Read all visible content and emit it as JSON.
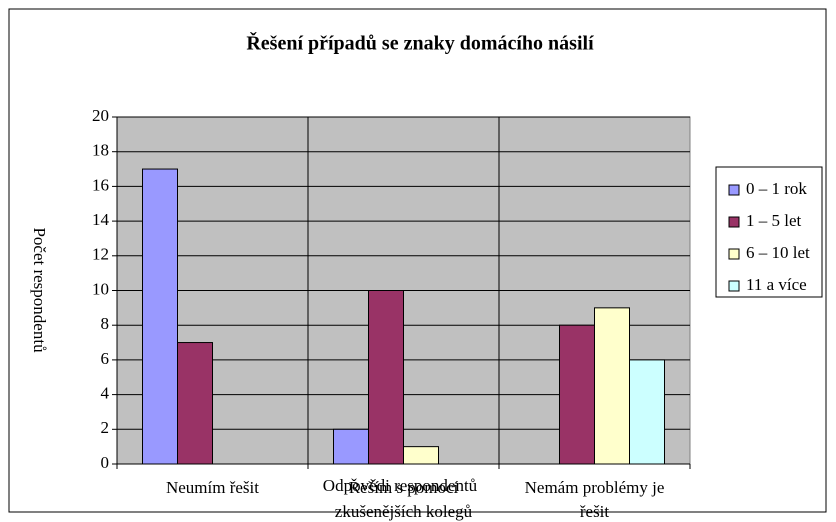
{
  "chart_data": {
    "type": "bar",
    "title": "Řešení případů se znaky domácího násilí",
    "x_label": "Odpovědi respondentů",
    "y_label": "Počet respondentů",
    "categories": [
      "Neumím řešit",
      "Řeším s pomocí zkušenějších kolegů",
      "Nemám problémy je řešit"
    ],
    "series": [
      {
        "name": "0 – 1 rok",
        "color": "#9999ff",
        "values": [
          17,
          2,
          0
        ]
      },
      {
        "name": "1 – 5 let",
        "color": "#993366",
        "values": [
          7,
          10,
          8
        ]
      },
      {
        "name": "6 – 10 let",
        "color": "#ffffcc",
        "values": [
          0,
          1,
          9
        ]
      },
      {
        "name": "11 a více",
        "color": "#ccffff",
        "values": [
          0,
          0,
          6
        ]
      }
    ],
    "ylim": [
      0,
      20
    ],
    "yticks": [
      0,
      2,
      4,
      6,
      8,
      10,
      12,
      14,
      16,
      18,
      20
    ],
    "grid": true,
    "legend": "right",
    "plot_background": "#c0c0c0"
  }
}
